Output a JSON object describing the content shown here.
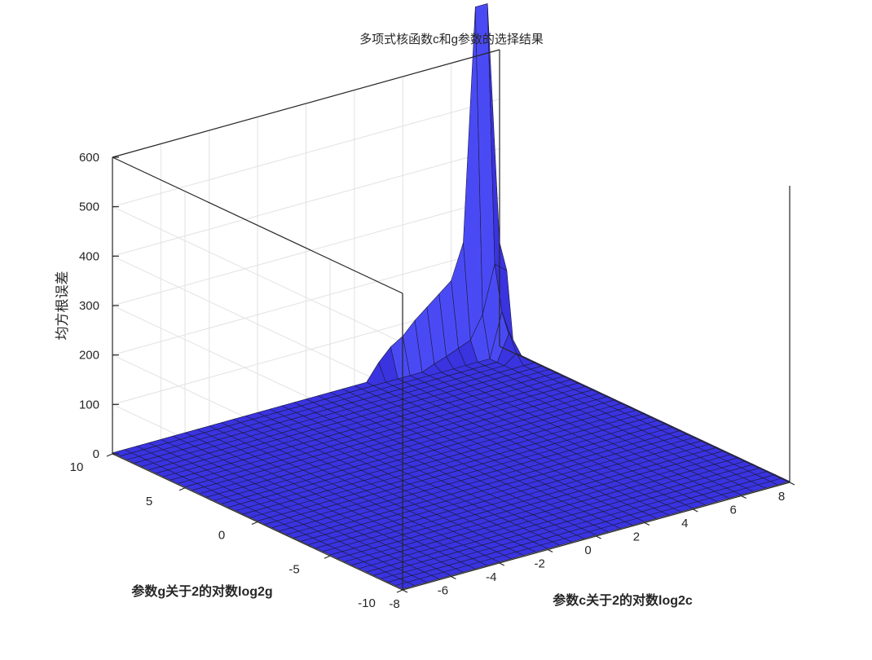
{
  "chart_data": {
    "type": "surface",
    "title": "多项式核函数c和g参数的选择结果",
    "xlabel": "参数c关于2的对数log2c",
    "ylabel": "参数g关于2的对数log2g",
    "zlabel": "均方根误差",
    "xlim": [
      -8,
      8
    ],
    "ylim": [
      -10,
      10
    ],
    "zlim": [
      0,
      600
    ],
    "xticks": [
      "-8",
      "-6",
      "-4",
      "-2",
      "0",
      "2",
      "4",
      "6",
      "8"
    ],
    "yticks": [
      "-10",
      "-5",
      "0",
      "5",
      "10"
    ],
    "zticks": [
      "0",
      "100",
      "200",
      "300",
      "400",
      "500",
      "600"
    ],
    "grid": true,
    "surface_color": "#3a33e0",
    "surface_highlight": "#4a4af5",
    "edge_color": "#1a1a3a",
    "x_grid": {
      "start": -8,
      "step": 0.5,
      "count": 33
    },
    "y_grid": {
      "start": -10,
      "step": 0.5,
      "count": 41
    },
    "baseline_z": 2,
    "nonzero_points": [
      {
        "x": 7.5,
        "y": 8.0,
        "z": 20
      },
      {
        "x": 7.5,
        "y": 8.5,
        "z": 55
      },
      {
        "x": 7.5,
        "y": 9.0,
        "z": 90
      },
      {
        "x": 7.5,
        "y": 9.5,
        "z": 180
      },
      {
        "x": 7.5,
        "y": 10.0,
        "z": 700
      },
      {
        "x": 7.0,
        "y": 9.5,
        "z": 85
      },
      {
        "x": 7.0,
        "y": 10.0,
        "z": 700
      },
      {
        "x": 8.0,
        "y": 9.5,
        "z": 160
      },
      {
        "x": 8.0,
        "y": 10.0,
        "z": 210
      },
      {
        "x": 6.5,
        "y": 10.0,
        "z": 230
      },
      {
        "x": 6.0,
        "y": 10.0,
        "z": 160
      },
      {
        "x": 5.5,
        "y": 10.0,
        "z": 140
      },
      {
        "x": 5.0,
        "y": 10.0,
        "z": 120
      },
      {
        "x": 4.5,
        "y": 10.0,
        "z": 100
      },
      {
        "x": 4.0,
        "y": 10.0,
        "z": 75
      },
      {
        "x": 3.5,
        "y": 10.0,
        "z": 60
      },
      {
        "x": 3.0,
        "y": 10.0,
        "z": 35
      },
      {
        "x": 6.5,
        "y": 9.5,
        "z": 40
      },
      {
        "x": 6.0,
        "y": 9.5,
        "z": 30
      },
      {
        "x": 5.5,
        "y": 9.5,
        "z": 20
      },
      {
        "x": 5.0,
        "y": 9.5,
        "z": 12
      }
    ]
  }
}
